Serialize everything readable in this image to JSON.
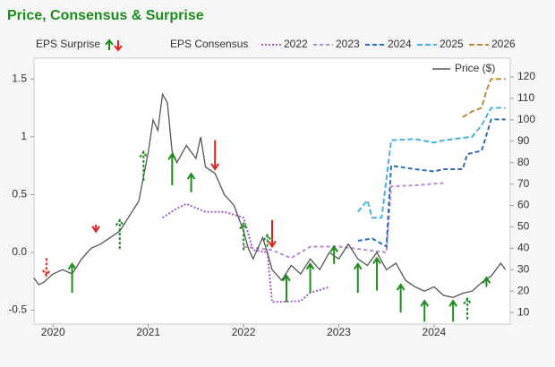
{
  "chart_data": {
    "type": "line",
    "title": "Price, Consensus & Surprise",
    "surprise_legend": "EPS Surprise",
    "consensus_legend": "EPS Consensus",
    "xlim": [
      2019.8,
      2024.8
    ],
    "xticks": [
      2020,
      2021,
      2022,
      2023,
      2024
    ],
    "ylim": [
      -0.62,
      1.68
    ],
    "yticks": [
      {
        "value": 1.5,
        "label": "1.5"
      },
      1,
      0.5,
      {
        "value": 0,
        "label": "0.0"
      },
      -0.5
    ],
    "y2lim": [
      4.6,
      128.8
    ],
    "y2ticks": [
      10,
      20,
      30,
      40,
      50,
      60,
      70,
      80,
      90,
      100,
      110,
      120
    ],
    "up_color": "#1e8c1e",
    "down_color": "#e0221e",
    "series": [
      {
        "name": "2022",
        "color": "#9a5fc0",
        "dash": "2,2",
        "legend": true,
        "x": [
          2021.15,
          2021.3,
          2021.4,
          2021.6,
          2021.8,
          2022.0,
          2022.1,
          2022.25,
          2022.3,
          2022.6,
          2022.7,
          2022.9
        ],
        "values": [
          0.3,
          0.38,
          0.42,
          0.35,
          0.35,
          0.3,
          0.02,
          0.0,
          -0.43,
          -0.42,
          -0.35,
          -0.3
        ]
      },
      {
        "name": "2023",
        "color": "#b88ad0",
        "dash": "4,3",
        "legend": true,
        "x": [
          2022.0,
          2022.3,
          2022.5,
          2022.7,
          2023.0,
          2023.3,
          2023.5,
          2023.55,
          2023.8,
          2024.1
        ],
        "values": [
          0.05,
          0.02,
          -0.05,
          0.05,
          0.05,
          0.02,
          0.0,
          0.57,
          0.58,
          0.6
        ]
      },
      {
        "name": "2024",
        "color": "#2e6db4",
        "dash": "5,3",
        "legend": true,
        "x": [
          2023.2,
          2023.35,
          2023.5,
          2023.55,
          2023.8,
          2024.0,
          2024.1,
          2024.3,
          2024.35,
          2024.5,
          2024.6,
          2024.75
        ],
        "values": [
          0.1,
          0.12,
          0.05,
          0.75,
          0.72,
          0.7,
          0.72,
          0.72,
          0.85,
          0.88,
          1.15,
          1.15
        ]
      },
      {
        "name": "2025",
        "color": "#4ab0e0",
        "dash": "6,3",
        "legend": true,
        "x": [
          2023.2,
          2023.3,
          2023.35,
          2023.45,
          2023.55,
          2023.8,
          2024.0,
          2024.1,
          2024.4,
          2024.5,
          2024.6,
          2024.75
        ],
        "values": [
          0.35,
          0.45,
          0.3,
          0.3,
          0.97,
          0.98,
          0.95,
          0.97,
          1.0,
          1.1,
          1.25,
          1.25
        ]
      },
      {
        "name": "2026",
        "color": "#c08a3a",
        "dash": "6,3",
        "legend": true,
        "x": [
          2024.3,
          2024.4,
          2024.5,
          2024.55,
          2024.6,
          2024.75
        ],
        "values": [
          1.17,
          1.22,
          1.25,
          1.4,
          1.5,
          1.5
        ]
      },
      {
        "name": "Price ($)",
        "color": "#555555",
        "axis": "y2",
        "legend": false,
        "x": [
          2019.8,
          2019.85,
          2019.9,
          2020.0,
          2020.1,
          2020.2,
          2020.3,
          2020.4,
          2020.5,
          2020.6,
          2020.7,
          2020.8,
          2020.9,
          2021.0,
          2021.05,
          2021.1,
          2021.15,
          2021.2,
          2021.25,
          2021.3,
          2021.4,
          2021.5,
          2021.55,
          2021.6,
          2021.7,
          2021.8,
          2021.9,
          2022.0,
          2022.05,
          2022.1,
          2022.2,
          2022.25,
          2022.3,
          2022.4,
          2022.5,
          2022.6,
          2022.7,
          2022.8,
          2022.9,
          2023.0,
          2023.1,
          2023.2,
          2023.3,
          2023.4,
          2023.5,
          2023.6,
          2023.7,
          2023.8,
          2023.9,
          2024.0,
          2024.1,
          2024.2,
          2024.3,
          2024.4,
          2024.5,
          2024.6,
          2024.7,
          2024.75
        ],
        "values": [
          26,
          23,
          24,
          28,
          30,
          28,
          35,
          40,
          42,
          45,
          48,
          55,
          62,
          85,
          100,
          95,
          112,
          108,
          85,
          80,
          88,
          82,
          92,
          78,
          75,
          65,
          60,
          48,
          40,
          35,
          45,
          38,
          30,
          25,
          32,
          28,
          35,
          30,
          38,
          35,
          42,
          35,
          32,
          38,
          30,
          33,
          25,
          22,
          20,
          22,
          18,
          17,
          19,
          20,
          24,
          27,
          33,
          30
        ]
      }
    ],
    "surprises": [
      {
        "x": 2019.93,
        "from": -0.05,
        "to": -0.2,
        "dashed": true
      },
      {
        "x": 2020.2,
        "from": -0.35,
        "to": -0.1,
        "dashed": false
      },
      {
        "x": 2020.45,
        "from": 0.24,
        "to": 0.18,
        "dashed": false
      },
      {
        "x": 2020.7,
        "from": 0.03,
        "to": 0.28,
        "dashed": true
      },
      {
        "x": 2020.95,
        "from": 0.62,
        "to": 0.87,
        "dashed": true
      },
      {
        "x": 2021.25,
        "from": 0.58,
        "to": 0.85,
        "dashed": false
      },
      {
        "x": 2021.45,
        "from": 0.52,
        "to": 0.68,
        "dashed": false
      },
      {
        "x": 2021.7,
        "from": 0.97,
        "to": 0.72,
        "dashed": false
      },
      {
        "x": 2022.0,
        "from": 0.02,
        "to": 0.25,
        "dashed": true
      },
      {
        "x": 2022.25,
        "from": 0.05,
        "to": 0.15,
        "dashed": true
      },
      {
        "x": 2022.3,
        "from": 0.28,
        "to": 0.05,
        "dashed": false
      },
      {
        "x": 2022.45,
        "from": -0.43,
        "to": -0.2,
        "dashed": false
      },
      {
        "x": 2022.7,
        "from": -0.35,
        "to": -0.1,
        "dashed": false
      },
      {
        "x": 2022.95,
        "from": -0.1,
        "to": 0.05,
        "dashed": false
      },
      {
        "x": 2023.2,
        "from": -0.35,
        "to": -0.1,
        "dashed": false
      },
      {
        "x": 2023.4,
        "from": -0.33,
        "to": -0.05,
        "dashed": false
      },
      {
        "x": 2023.65,
        "from": -0.52,
        "to": -0.28,
        "dashed": false
      },
      {
        "x": 2023.9,
        "from": -0.6,
        "to": -0.42,
        "dashed": false
      },
      {
        "x": 2024.2,
        "from": -0.6,
        "to": -0.42,
        "dashed": false
      },
      {
        "x": 2024.35,
        "from": -0.58,
        "to": -0.4,
        "dashed": true
      },
      {
        "x": 2024.55,
        "from": -0.3,
        "to": -0.22,
        "dashed": false
      }
    ]
  }
}
